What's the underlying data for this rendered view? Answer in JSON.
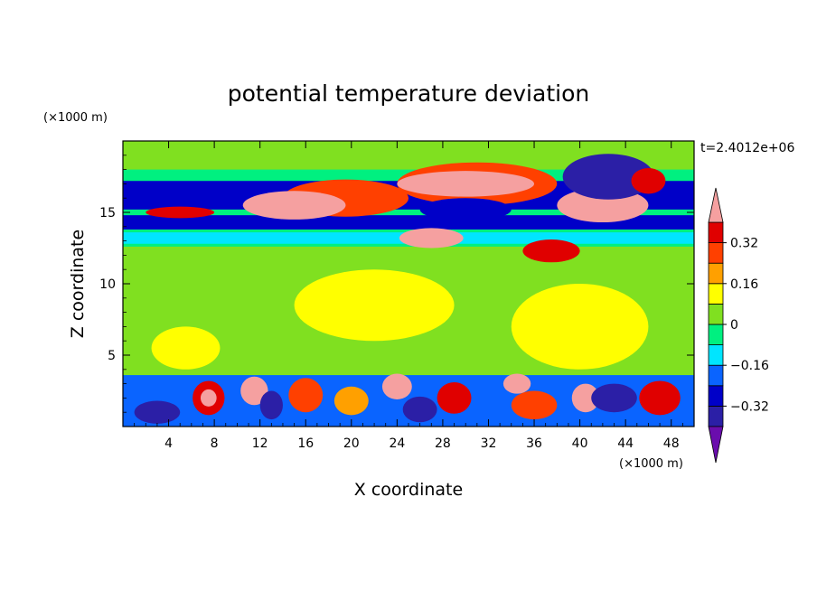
{
  "chart_data": {
    "type": "heatmap",
    "title": "potential temperature deviation",
    "xlabel": "X coordinate",
    "ylabel": "Z coordinate",
    "x_unit": "(×1000 m)",
    "y_unit": "(×1000 m)",
    "time_label": "t=2.4012e+06",
    "xlim": [
      0,
      50
    ],
    "ylim": [
      0,
      20
    ],
    "x_ticks": [
      4,
      8,
      12,
      16,
      20,
      24,
      28,
      32,
      36,
      40,
      44,
      48
    ],
    "y_ticks": [
      5,
      10,
      15
    ],
    "colorbar": {
      "levels": [
        -0.4,
        -0.32,
        -0.24,
        -0.16,
        -0.08,
        0,
        0.08,
        0.16,
        0.24,
        0.32,
        0.4
      ],
      "labels": [
        "−0.32",
        "−0.16",
        "0",
        "0.16",
        "0.32"
      ],
      "label_values": [
        -0.32,
        -0.16,
        0,
        0.16,
        0.32
      ],
      "colors": [
        "#6a0dad",
        "#2b1fa6",
        "#0000c8",
        "#0a64ff",
        "#00e5ff",
        "#00f080",
        "#80e020",
        "#ffff00",
        "#ffa000",
        "#ff4000",
        "#e00000",
        "#f5a0a0"
      ]
    },
    "background_color": "#00f080",
    "bands": [
      {
        "y": [
          18,
          20
        ],
        "level": 0
      },
      {
        "y": [
          15.2,
          17.2
        ],
        "level": -0.32
      },
      {
        "y": [
          13.8,
          14.8
        ],
        "level": -0.32
      },
      {
        "y": [
          12.8,
          13.6
        ],
        "level": -0.16
      },
      {
        "y": [
          3.6,
          12.6
        ],
        "level": 0
      },
      {
        "y": [
          0,
          3.6
        ],
        "level": -0.24
      }
    ],
    "blobs": [
      {
        "x": 19.5,
        "y": 16.0,
        "rx": 5.5,
        "ry": 1.3,
        "level": 0.24
      },
      {
        "x": 15.0,
        "y": 15.5,
        "rx": 4.5,
        "ry": 1.0,
        "level": 0.4
      },
      {
        "x": 31.0,
        "y": 17.0,
        "rx": 7.0,
        "ry": 1.5,
        "level": 0.24
      },
      {
        "x": 30.0,
        "y": 17.0,
        "rx": 6.0,
        "ry": 0.9,
        "level": 0.4
      },
      {
        "x": 42.0,
        "y": 15.5,
        "rx": 4.0,
        "ry": 1.2,
        "level": 0.4
      },
      {
        "x": 30.0,
        "y": 15.2,
        "rx": 4.0,
        "ry": 0.8,
        "level": -0.32
      },
      {
        "x": 42.5,
        "y": 17.5,
        "rx": 4.0,
        "ry": 1.6,
        "level": -0.4
      },
      {
        "x": 27.0,
        "y": 13.2,
        "rx": 2.8,
        "ry": 0.7,
        "level": 0.4
      },
      {
        "x": 37.5,
        "y": 12.3,
        "rx": 2.5,
        "ry": 0.8,
        "level": 0.32
      },
      {
        "x": 46.0,
        "y": 17.2,
        "rx": 1.5,
        "ry": 0.9,
        "level": 0.32
      },
      {
        "x": 5.0,
        "y": 15.0,
        "rx": 3.0,
        "ry": 0.4,
        "level": 0.32
      },
      {
        "x": 40.0,
        "y": 7.0,
        "rx": 6.0,
        "ry": 3.0,
        "level": 0.08
      },
      {
        "x": 22.0,
        "y": 8.5,
        "rx": 7.0,
        "ry": 2.5,
        "level": 0.08
      },
      {
        "x": 5.5,
        "y": 5.5,
        "rx": 3.0,
        "ry": 1.5,
        "level": 0.08
      },
      {
        "x": 7.5,
        "y": 2.0,
        "rx": 1.4,
        "ry": 1.2,
        "level": 0.32
      },
      {
        "x": 7.5,
        "y": 2.0,
        "rx": 0.7,
        "ry": 0.6,
        "level": 0.4
      },
      {
        "x": 11.5,
        "y": 2.5,
        "rx": 1.2,
        "ry": 1.0,
        "level": 0.4
      },
      {
        "x": 16.0,
        "y": 2.2,
        "rx": 1.5,
        "ry": 1.2,
        "level": 0.24
      },
      {
        "x": 20.0,
        "y": 1.8,
        "rx": 1.5,
        "ry": 1.0,
        "level": 0.16
      },
      {
        "x": 24.0,
        "y": 2.8,
        "rx": 1.3,
        "ry": 0.9,
        "level": 0.4
      },
      {
        "x": 29.0,
        "y": 2.0,
        "rx": 1.5,
        "ry": 1.1,
        "level": 0.32
      },
      {
        "x": 34.5,
        "y": 3.0,
        "rx": 1.2,
        "ry": 0.7,
        "level": 0.4
      },
      {
        "x": 36.0,
        "y": 1.5,
        "rx": 2.0,
        "ry": 1.0,
        "level": 0.24
      },
      {
        "x": 40.5,
        "y": 2.0,
        "rx": 1.2,
        "ry": 1.0,
        "level": 0.4
      },
      {
        "x": 47.0,
        "y": 2.0,
        "rx": 1.8,
        "ry": 1.2,
        "level": 0.32
      },
      {
        "x": 3.0,
        "y": 1.0,
        "rx": 2.0,
        "ry": 0.8,
        "level": -0.4
      },
      {
        "x": 13.0,
        "y": 1.5,
        "rx": 1.0,
        "ry": 1.0,
        "level": -0.4
      },
      {
        "x": 26.0,
        "y": 1.2,
        "rx": 1.5,
        "ry": 0.9,
        "level": -0.4
      },
      {
        "x": 43.0,
        "y": 2.0,
        "rx": 2.0,
        "ry": 1.0,
        "level": -0.4
      }
    ]
  }
}
